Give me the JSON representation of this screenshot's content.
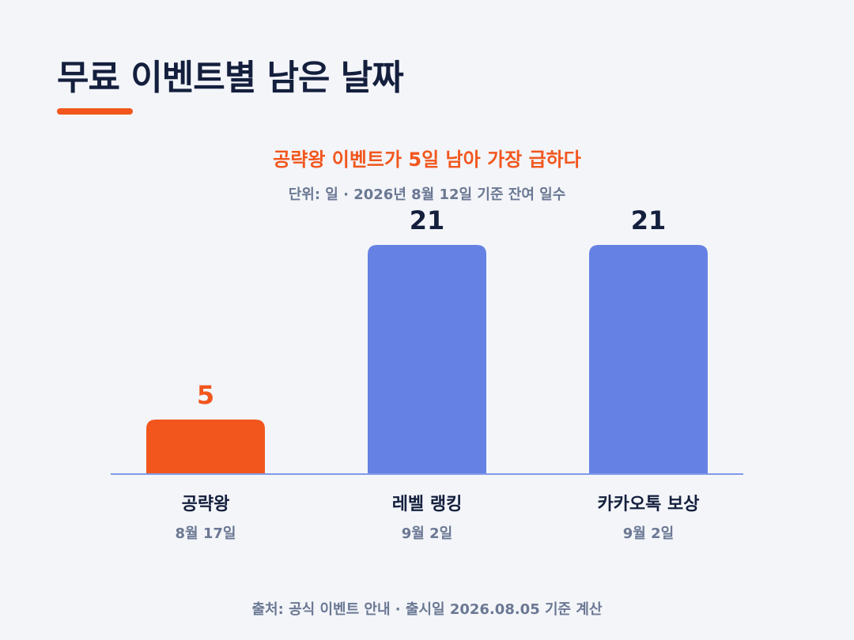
{
  "title": "무료 이벤트별 남은 날짜",
  "subtitle": "공략왕 이벤트가 5일 남아 가장 급하다",
  "unit_note": "단위: 일 · 2026년 8월 12일 기준 잔여 일수",
  "source": "출처: 공식 이벤트 안내 · 출시일 2026.08.05 기준 계산",
  "colors": {
    "accent": "#f2561d",
    "bar": "#6581e3",
    "baseline": "#7f9ae9",
    "title": "#141f3d",
    "muted": "#6b7893"
  },
  "chart_data": {
    "type": "bar",
    "categories": [
      "공략왕",
      "레벨 랭킹",
      "카카오톡 보상"
    ],
    "dates": [
      "8월 17일",
      "9월 2일",
      "9월 2일"
    ],
    "values": [
      5,
      21,
      21
    ],
    "highlight_index": 0,
    "ylim": [
      0,
      21
    ],
    "grid": false,
    "legend": "none",
    "xlabel": "",
    "ylabel": ""
  }
}
